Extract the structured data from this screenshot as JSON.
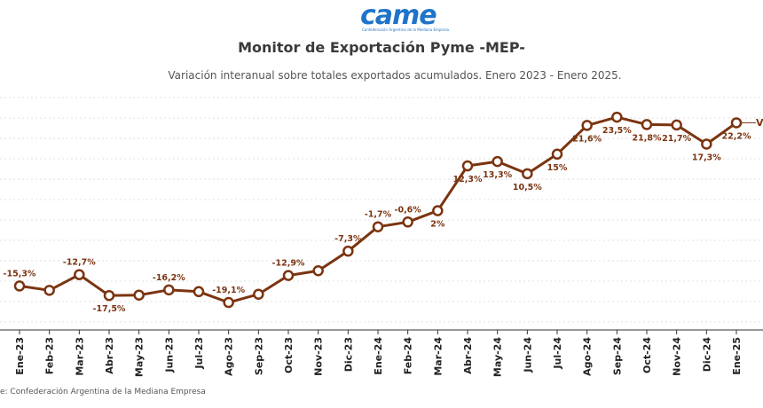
{
  "logo": {
    "text": "came",
    "subtext": "Confederación Argentina de la Mediana Empresa"
  },
  "colors": {
    "line": "#7b3410",
    "label": "#7b3410",
    "axis": "#333333",
    "grid": "#d9d9d9"
  },
  "chart_data": {
    "type": "line",
    "title": "Monitor de Exportación Pyme -MEP-",
    "subtitle": "Variación interanual sobre totales exportados acumulados. Enero 2023 - Enero 2025.",
    "categories": [
      "Ene-23",
      "Feb-23",
      "Mar-23",
      "Abr-23",
      "May-23",
      "Jun-23",
      "Jul-23",
      "Ago-23",
      "Sep-23",
      "Oct-23",
      "Nov-23",
      "Dic-23",
      "Ene-24",
      "Feb-24",
      "Mar-24",
      "Abr-24",
      "May-24",
      "Jun-24",
      "Jul-24",
      "Ago-24",
      "Sep-24",
      "Oct-24",
      "Nov-24",
      "Dic-24",
      "Ene-25"
    ],
    "series": [
      {
        "values": [
          -15.3,
          -16.3,
          -12.7,
          -17.5,
          -17.4,
          -16.2,
          -16.6,
          -19.1,
          -17.2,
          -12.9,
          -11.8,
          -7.3,
          -1.7,
          -0.6,
          2,
          12.3,
          13.3,
          10.5,
          15,
          21.6,
          23.5,
          21.8,
          21.7,
          17.3,
          22.2
        ],
        "labels": [
          "-15,3%",
          "",
          "-12,7%",
          "-17,5%",
          "",
          "-16,2%",
          "",
          "-19,1%",
          "",
          "-12,9%",
          "",
          "-7,3%",
          "-1,7%",
          "-0,6%",
          "2%",
          "12,3%",
          "13,3%",
          "10,5%",
          "15%",
          "21,6%",
          "23,5%",
          "21,8%",
          "21,7%",
          "17,3%",
          "22,2%"
        ]
      }
    ],
    "ylim": [
      -25,
      28
    ],
    "grid": true,
    "legend": "right",
    "legend_text": "V("
  },
  "source": "e: Confederación Argentina de la Mediana Empresa"
}
